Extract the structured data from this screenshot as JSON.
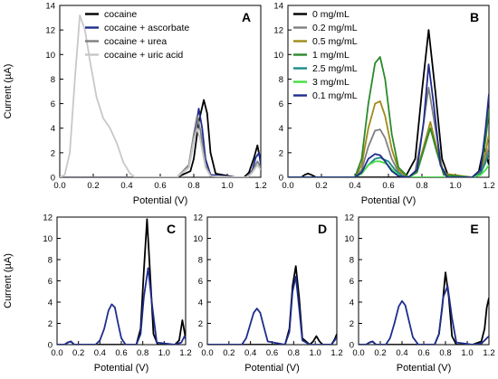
{
  "chart_data": [
    {
      "id": "A",
      "type": "line",
      "panel_label": "A",
      "xlabel": "Potential (V)",
      "ylabel": "Current (µA)",
      "xlim": [
        0,
        1.2
      ],
      "ylim": [
        0,
        14
      ],
      "xticks": [
        0,
        0.2,
        0.4,
        0.6,
        0.8,
        1,
        1.2
      ],
      "yticks": [
        0,
        2,
        4,
        6,
        8,
        10,
        12,
        14
      ],
      "xtick_labels": [
        "0.0",
        "0.2",
        "0.4",
        "0.6",
        "0.8",
        "1.0",
        "1.2"
      ],
      "legend_position": "top-left",
      "series": [
        {
          "name": "cocaine",
          "color": "#000000",
          "x": [
            0,
            0.05,
            0.5,
            0.7,
            0.78,
            0.8,
            0.83,
            0.86,
            0.88,
            0.9,
            0.93,
            1.05,
            1.1,
            1.13,
            1.16,
            1.18,
            1.2
          ],
          "y": [
            0,
            0,
            0,
            0,
            0.5,
            1.5,
            4.5,
            6.3,
            5.2,
            2,
            0.3,
            0,
            0,
            0.4,
            1.6,
            2.6,
            1.2
          ]
        },
        {
          "name": "cocaine + ascorbate",
          "color": "#1f2d8c",
          "x": [
            0,
            0.05,
            0.5,
            0.7,
            0.77,
            0.8,
            0.83,
            0.85,
            0.87,
            0.9,
            1.05,
            1.12,
            1.15,
            1.17,
            1.19,
            1.2
          ],
          "y": [
            0,
            0,
            0,
            0,
            0.8,
            3,
            5.6,
            4,
            1.5,
            0.2,
            0,
            0,
            0.6,
            1.6,
            2,
            1
          ]
        },
        {
          "name": "cocaine + urea",
          "color": "#808080",
          "x": [
            0,
            0.05,
            0.5,
            0.7,
            0.77,
            0.8,
            0.82,
            0.84,
            0.87,
            0.9,
            1.05,
            1.12,
            1.15,
            1.18,
            1.2
          ],
          "y": [
            0,
            0,
            0,
            0,
            1,
            3.5,
            5,
            3.8,
            1,
            0.1,
            0,
            0,
            0.5,
            1.3,
            0.8
          ]
        },
        {
          "name": "cocaine + uric acid",
          "color": "#c8c8c8",
          "x": [
            0,
            0.03,
            0.06,
            0.09,
            0.12,
            0.15,
            0.18,
            0.22,
            0.26,
            0.3,
            0.34,
            0.38,
            0.42,
            0.45,
            0.5,
            0.7,
            0.77,
            0.8,
            0.82,
            0.84,
            0.87,
            0.9,
            1.05,
            1.12,
            1.15,
            1.18,
            1.2
          ],
          "y": [
            0,
            0.2,
            2,
            8,
            13.2,
            12,
            9.5,
            6.5,
            4.8,
            4,
            2.8,
            1.2,
            0.3,
            0,
            0,
            0,
            0.8,
            3,
            4,
            3,
            0.8,
            0.1,
            0,
            0,
            0.4,
            1,
            0.6
          ]
        }
      ]
    },
    {
      "id": "B",
      "type": "line",
      "panel_label": "B",
      "xlabel": "Potential (V)",
      "ylabel": "",
      "xlim": [
        0,
        1.2
      ],
      "ylim": [
        0,
        14
      ],
      "xticks": [
        0,
        0.2,
        0.4,
        0.6,
        0.8,
        1,
        1.2
      ],
      "yticks": [
        0,
        2,
        4,
        6,
        8,
        10,
        12,
        14
      ],
      "xtick_labels": [
        "0.0",
        "0.2",
        "0.4",
        "0.6",
        "0.8",
        "1.0",
        "1.2"
      ],
      "legend_position": "top-left",
      "series": [
        {
          "name": "0 mg/mL",
          "color": "#000000",
          "x": [
            0,
            0.08,
            0.1,
            0.12,
            0.14,
            0.17,
            0.4,
            0.7,
            0.76,
            0.8,
            0.84,
            0.88,
            0.92,
            0.96,
            1.1,
            1.14,
            1.17,
            1.2
          ],
          "y": [
            0,
            0,
            0.2,
            0.3,
            0.2,
            0,
            0,
            0,
            1.5,
            7,
            12,
            7,
            1.5,
            0,
            0,
            0.5,
            2.5,
            1
          ]
        },
        {
          "name": "0.2 mg/mL",
          "color": "#808080",
          "x": [
            0,
            0.4,
            0.44,
            0.48,
            0.52,
            0.55,
            0.58,
            0.62,
            0.66,
            0.72,
            0.76,
            0.8,
            0.84,
            0.88,
            0.92,
            0.96,
            1.1,
            1.15,
            1.18,
            1.2
          ],
          "y": [
            0,
            0,
            0.6,
            2.5,
            3.8,
            3.9,
            3.2,
            1.5,
            0.4,
            0,
            0.5,
            3.5,
            7.3,
            4,
            0.8,
            0,
            0,
            0.4,
            1.5,
            2.5
          ]
        },
        {
          "name": "0.5 mg/mL",
          "color": "#a08a1a",
          "x": [
            0,
            0.4,
            0.44,
            0.48,
            0.52,
            0.55,
            0.58,
            0.62,
            0.66,
            0.72,
            0.77,
            0.81,
            0.85,
            0.89,
            0.93,
            1.1,
            1.15,
            1.18,
            1.2
          ],
          "y": [
            0,
            0,
            1,
            4,
            6,
            6.2,
            5,
            2.3,
            0.6,
            0,
            0.5,
            2.5,
            4.5,
            2.3,
            0.3,
            0,
            0.5,
            2,
            3.5
          ]
        },
        {
          "name": "1 mg/mL",
          "color": "#2a8a2a",
          "x": [
            0,
            0.4,
            0.44,
            0.48,
            0.52,
            0.55,
            0.58,
            0.62,
            0.66,
            0.72,
            0.77,
            0.81,
            0.85,
            0.89,
            0.93,
            1.1,
            1.15,
            1.18,
            1.2
          ],
          "y": [
            0,
            0,
            1.5,
            6,
            9.3,
            9.8,
            8,
            3.5,
            0.8,
            0,
            0.4,
            2.2,
            4,
            2,
            0.2,
            0,
            0.6,
            3,
            5.5
          ]
        },
        {
          "name": "2.5 mg/mL",
          "color": "#1a8a8a",
          "x": [
            0,
            0.4,
            0.44,
            0.48,
            0.52,
            0.55,
            0.6,
            0.64,
            0.68,
            0.72,
            0.76,
            0.8,
            0.84,
            0.88,
            0.92,
            1.1,
            1.15,
            1.18,
            1.2
          ],
          "y": [
            0,
            0,
            0.3,
            1,
            1.5,
            1.6,
            1.3,
            0.6,
            0.1,
            0,
            0,
            0,
            0,
            0,
            0,
            0,
            0.3,
            1.2,
            2
          ]
        },
        {
          "name": "3 mg/mL",
          "color": "#44dd44",
          "x": [
            0,
            0.4,
            0.44,
            0.48,
            0.52,
            0.55,
            0.59,
            0.63,
            0.67,
            0.72,
            0.8,
            1.1,
            1.15,
            1.18,
            1.2
          ],
          "y": [
            0,
            0,
            0.3,
            1,
            1.3,
            1.3,
            1.1,
            0.5,
            0.1,
            0,
            0,
            0,
            0.2,
            0.6,
            1
          ]
        },
        {
          "name": "0.1 mg/mL",
          "color": "#1f2d8c",
          "x": [
            0,
            0.4,
            0.44,
            0.48,
            0.52,
            0.55,
            0.58,
            0.62,
            0.66,
            0.72,
            0.77,
            0.81,
            0.84,
            0.87,
            0.91,
            0.95,
            1.1,
            1.15,
            1.18,
            1.2
          ],
          "y": [
            0,
            0,
            0.4,
            1.5,
            1.9,
            1.8,
            1.3,
            0.5,
            0.1,
            0,
            0.6,
            4.5,
            9.2,
            6,
            1,
            0,
            0,
            0.6,
            4,
            6.8
          ]
        }
      ]
    },
    {
      "id": "C",
      "type": "line",
      "panel_label": "C",
      "xlabel": "Potential (V)",
      "ylabel": "Current (µA)",
      "xlim": [
        0,
        1.2
      ],
      "ylim": [
        0,
        12
      ],
      "xticks": [
        0,
        0.2,
        0.4,
        0.6,
        0.8,
        1,
        1.2
      ],
      "yticks": [
        0,
        2,
        4,
        6,
        8,
        10,
        12
      ],
      "xtick_labels": [
        "0.0",
        "0.2",
        "0.4",
        "0.6",
        "0.8",
        "1.0",
        "1.2"
      ],
      "series": [
        {
          "name": "",
          "color": "#000000",
          "x": [
            0,
            0.07,
            0.1,
            0.13,
            0.16,
            0.5,
            0.74,
            0.78,
            0.81,
            0.84,
            0.87,
            0.9,
            0.94,
            1.1,
            1.14,
            1.17,
            1.2
          ],
          "y": [
            0,
            0,
            0.2,
            0.3,
            0,
            0,
            0,
            1.5,
            7,
            11.8,
            6.5,
            1,
            0,
            0,
            0.4,
            2.3,
            0.6
          ]
        },
        {
          "name": "",
          "color": "#1f2d8c",
          "x": [
            0,
            0.07,
            0.1,
            0.13,
            0.16,
            0.36,
            0.4,
            0.44,
            0.48,
            0.51,
            0.54,
            0.57,
            0.6,
            0.64,
            0.74,
            0.78,
            0.81,
            0.85,
            0.89,
            0.93,
            1.1,
            1.16,
            1.19,
            1.2
          ],
          "y": [
            0,
            0,
            0.2,
            0.3,
            0,
            0,
            0.4,
            1.5,
            3.2,
            3.8,
            3.5,
            2,
            0.6,
            0,
            0,
            1,
            4.5,
            7.2,
            3.5,
            0.2,
            0,
            0.2,
            0.8,
            0.5
          ]
        }
      ]
    },
    {
      "id": "D",
      "type": "line",
      "panel_label": "D",
      "xlabel": "Potential (V)",
      "ylabel": "",
      "xlim": [
        0,
        1.2
      ],
      "ylim": [
        0,
        12
      ],
      "xticks": [
        0,
        0.2,
        0.4,
        0.6,
        0.8,
        1,
        1.2
      ],
      "yticks": [
        0,
        2,
        4,
        6,
        8,
        10,
        12
      ],
      "xtick_labels": [
        "0.0",
        "0.2",
        "0.4",
        "0.6",
        "0.8",
        "1.0",
        "1.2"
      ],
      "series": [
        {
          "name": "",
          "color": "#000000",
          "x": [
            0,
            0.4,
            0.6,
            0.72,
            0.76,
            0.79,
            0.82,
            0.85,
            0.88,
            0.95,
            0.98,
            1.01,
            1.04,
            1.07,
            1.15,
            1.18,
            1.2
          ],
          "y": [
            0,
            0,
            0,
            0,
            1.5,
            5.5,
            7.4,
            4.5,
            0.6,
            0,
            0.3,
            0.8,
            0.3,
            0,
            0,
            0.5,
            1
          ]
        },
        {
          "name": "",
          "color": "#1f2d8c",
          "x": [
            0,
            0.32,
            0.36,
            0.4,
            0.43,
            0.46,
            0.49,
            0.52,
            0.56,
            0.72,
            0.76,
            0.79,
            0.82,
            0.85,
            0.88,
            0.95,
            1.15,
            1.18,
            1.2
          ],
          "y": [
            0,
            0,
            0.6,
            2,
            3,
            3.4,
            3,
            1.8,
            0.3,
            0,
            1.2,
            5,
            6.4,
            3.5,
            0.4,
            0,
            0,
            0.4,
            0.7
          ]
        }
      ]
    },
    {
      "id": "E",
      "type": "line",
      "panel_label": "E",
      "xlabel": "Potential (V)",
      "ylabel": "",
      "xlim": [
        0,
        1.2
      ],
      "ylim": [
        0,
        12
      ],
      "xticks": [
        0,
        0.2,
        0.4,
        0.6,
        0.8,
        1,
        1.2
      ],
      "yticks": [
        0,
        2,
        4,
        6,
        8,
        10,
        12
      ],
      "xtick_labels": [
        "0.0",
        "0.2",
        "0.4",
        "0.6",
        "0.8",
        "1.0",
        "1.2"
      ],
      "series": [
        {
          "name": "",
          "color": "#000000",
          "x": [
            0,
            0.07,
            0.1,
            0.13,
            0.16,
            0.5,
            0.7,
            0.74,
            0.77,
            0.8,
            0.83,
            0.86,
            0.9,
            1.05,
            1.13,
            1.16,
            1.18,
            1.2
          ],
          "y": [
            0,
            0,
            0.2,
            0.3,
            0,
            0,
            0,
            1,
            3.5,
            6.8,
            4.5,
            0.8,
            0,
            0,
            0.3,
            1.5,
            3.5,
            4.4
          ]
        },
        {
          "name": "",
          "color": "#1f2d8c",
          "x": [
            0,
            0.07,
            0.1,
            0.13,
            0.16,
            0.25,
            0.29,
            0.33,
            0.37,
            0.4,
            0.43,
            0.46,
            0.5,
            0.55,
            0.7,
            0.74,
            0.78,
            0.82,
            0.86,
            0.9,
            1.05,
            1.13,
            1.16,
            1.18,
            1.2
          ],
          "y": [
            0,
            0,
            0.2,
            0.3,
            0,
            0,
            0.6,
            2,
            3.6,
            4.1,
            3.7,
            2.4,
            0.7,
            0,
            0,
            1,
            4.5,
            5.5,
            2.5,
            0.2,
            0,
            0.1,
            0.4,
            0.6,
            0.8
          ]
        }
      ]
    }
  ]
}
